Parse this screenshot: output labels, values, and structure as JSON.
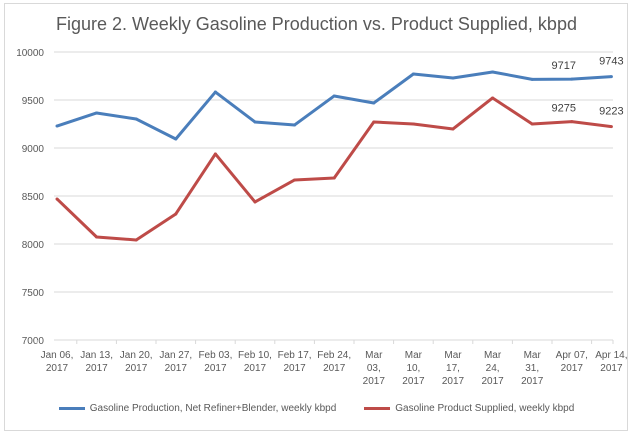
{
  "chart_data": {
    "type": "line",
    "title": "Figure 2. Weekly Gasoline Production vs. Product Supplied, kbpd",
    "xlabel": "",
    "ylabel": "",
    "ylim": [
      7000,
      10000
    ],
    "yticks": [
      7000,
      7500,
      8000,
      8500,
      9000,
      9500,
      10000
    ],
    "grid": true,
    "legend_position": "bottom",
    "categories": [
      [
        "Jan 06,",
        "2017"
      ],
      [
        "Jan 13,",
        "2017"
      ],
      [
        "Jan 20,",
        "2017"
      ],
      [
        "Jan 27,",
        "2017"
      ],
      [
        "Feb 03,",
        "2017"
      ],
      [
        "Feb 10,",
        "2017"
      ],
      [
        "Feb 17,",
        "2017"
      ],
      [
        "Feb 24,",
        "2017"
      ],
      [
        "Mar",
        "03,",
        "2017"
      ],
      [
        "Mar",
        "10,",
        "2017"
      ],
      [
        "Mar",
        "17,",
        "2017"
      ],
      [
        "Mar",
        "24,",
        "2017"
      ],
      [
        "Mar",
        "31,",
        "2017"
      ],
      [
        "Apr 07,",
        "2017"
      ],
      [
        "Apr 14,",
        "2017"
      ]
    ],
    "series": [
      {
        "name": "Gasoline Production, Net Refiner+Blender, weekly kbpd",
        "color": "#4a7ebb",
        "values": [
          9229,
          9365,
          9302,
          9094,
          9583,
          9271,
          9240,
          9542,
          9469,
          9771,
          9729,
          9792,
          9715,
          9717,
          9743
        ],
        "labels": {
          "13": "9717",
          "14": "9743"
        }
      },
      {
        "name": "Gasoline Product Supplied, weekly kbpd",
        "color": "#be4b48",
        "values": [
          8469,
          8073,
          8042,
          8313,
          8938,
          8438,
          8667,
          8688,
          9271,
          9250,
          9198,
          9521,
          9250,
          9275,
          9223
        ],
        "labels": {
          "13": "9275",
          "14": "9223"
        }
      }
    ]
  }
}
